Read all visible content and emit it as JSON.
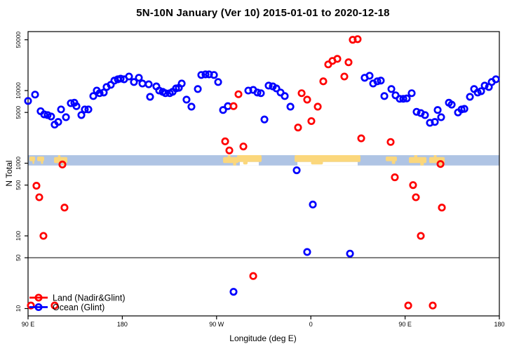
{
  "chart_data": {
    "type": "scatter",
    "title": "5N-10N January (Ver 10)   2015-01-01 to 2020-12-18",
    "xlabel": "Longitude (deg E)",
    "ylabel": "N Total",
    "x_axis": {
      "range_deg": [
        90,
        540
      ],
      "tick_degs": [
        90,
        180,
        270,
        360,
        450,
        540
      ],
      "tick_labels": [
        "90 E",
        "180",
        "90 W",
        "0",
        "90 E",
        "180"
      ],
      "note": "longitude axis wraps eastward from 90E through 180, 90W, 0, 90E to 180"
    },
    "y_axis": {
      "scale": "log",
      "ticks": [
        10,
        50,
        100,
        500,
        1000,
        5000,
        10000,
        50000
      ],
      "range": [
        8,
        75000
      ]
    },
    "threshold_line_value": 50,
    "map_band": {
      "value_range": [
        930,
        1290
      ],
      "ocean_color": "#AFC4E4",
      "land_color": "#FBD77C",
      "land_patches": [
        {
          "deg": [
            91.3,
            96.7
          ],
          "cov": "island"
        },
        {
          "deg": [
            98.7,
            105.4
          ],
          "cov": "island"
        },
        {
          "deg": [
            114.8,
            127.5
          ],
          "cov": "mid"
        },
        {
          "deg": [
            276.2,
            290.9
          ],
          "cov": "mid"
        },
        {
          "deg": [
            289.5,
            313.0
          ],
          "cov": "coast"
        },
        {
          "deg": [
            344.5,
            407.4
          ],
          "cov": "coast"
        },
        {
          "deg": [
            431.5,
            442.2
          ],
          "cov": "island"
        },
        {
          "deg": [
            453.6,
            470.4
          ],
          "cov": "mid"
        },
        {
          "deg": [
            473.0,
            487.8
          ],
          "cov": "mid"
        }
      ]
    },
    "legend": {
      "position": "bottom-left",
      "entries": [
        "Land (Nadir&Glint)",
        "Ocean (Glint)"
      ]
    },
    "series": [
      {
        "name": "Land (Nadir&Glint)",
        "color": "#FF0000",
        "points": [
          [
            92.7,
            11
          ],
          [
            98,
            490
          ],
          [
            100.7,
            340
          ],
          [
            104.7,
            100
          ],
          [
            115.4,
            11
          ],
          [
            122.8,
            960
          ],
          [
            124.8,
            245
          ],
          [
            278.2,
            2000
          ],
          [
            282.2,
            1500
          ],
          [
            286.2,
            6100
          ],
          [
            290.9,
            8900
          ],
          [
            295.6,
            1700
          ],
          [
            305,
            28
          ],
          [
            347.8,
            3100
          ],
          [
            351.2,
            9200
          ],
          [
            356.5,
            7500
          ],
          [
            360.5,
            3800
          ],
          [
            366.6,
            6000
          ],
          [
            371.9,
            13400
          ],
          [
            376.6,
            22900
          ],
          [
            380.6,
            25600
          ],
          [
            385.3,
            27300
          ],
          [
            392,
            15600
          ],
          [
            396,
            24500
          ],
          [
            400,
            50000
          ],
          [
            404.7,
            51000
          ],
          [
            408.1,
            2200
          ],
          [
            436.2,
            1960
          ],
          [
            440.2,
            640
          ],
          [
            453,
            11
          ],
          [
            457.6,
            500
          ],
          [
            460.3,
            340
          ],
          [
            465,
            100
          ],
          [
            476.4,
            11
          ],
          [
            483.8,
            975
          ],
          [
            485.1,
            245
          ]
        ]
      },
      {
        "name": "Ocean (Glint)",
        "color": "#0000FF",
        "points": [
          [
            90,
            7200
          ],
          [
            96.7,
            8800
          ],
          [
            102,
            5200
          ],
          [
            105.4,
            4700
          ],
          [
            108.7,
            4600
          ],
          [
            112,
            4400
          ],
          [
            115.4,
            3400
          ],
          [
            118.8,
            3700
          ],
          [
            121.5,
            5500
          ],
          [
            126.2,
            4300
          ],
          [
            130.8,
            6700
          ],
          [
            134.2,
            6800
          ],
          [
            136.2,
            6100
          ],
          [
            140.9,
            4600
          ],
          [
            144.2,
            5500
          ],
          [
            147.6,
            5500
          ],
          [
            152.3,
            8400
          ],
          [
            155.6,
            10000
          ],
          [
            158.3,
            9200
          ],
          [
            162.3,
            9400
          ],
          [
            165,
            11200
          ],
          [
            169,
            12000
          ],
          [
            172.4,
            13700
          ],
          [
            175.7,
            14300
          ],
          [
            178.4,
            14600
          ],
          [
            181.7,
            14300
          ],
          [
            186.4,
            15600
          ],
          [
            191.1,
            13100
          ],
          [
            195.8,
            15000
          ],
          [
            199.2,
            12500
          ],
          [
            205.2,
            12200
          ],
          [
            206.5,
            8200
          ],
          [
            212.5,
            11400
          ],
          [
            215.2,
            10000
          ],
          [
            218.6,
            9600
          ],
          [
            221.2,
            9200
          ],
          [
            225.3,
            9200
          ],
          [
            228,
            9600
          ],
          [
            231.3,
            10700
          ],
          [
            234,
            10900
          ],
          [
            236.7,
            12500
          ],
          [
            241.3,
            7500
          ],
          [
            246,
            6000
          ],
          [
            252.1,
            10500
          ],
          [
            255.4,
            16400
          ],
          [
            259.4,
            16700
          ],
          [
            262.8,
            16700
          ],
          [
            267.5,
            16400
          ],
          [
            271.5,
            13100
          ],
          [
            276.2,
            5400
          ],
          [
            280.8,
            6100
          ],
          [
            286.2,
            17
          ],
          [
            300.3,
            10000
          ],
          [
            305,
            10200
          ],
          [
            309,
            9400
          ],
          [
            312.3,
            9200
          ],
          [
            315.7,
            4000
          ],
          [
            319.7,
            11700
          ],
          [
            323.7,
            11400
          ],
          [
            327.1,
            10700
          ],
          [
            331.1,
            9400
          ],
          [
            335.1,
            8400
          ],
          [
            340.5,
            6000
          ],
          [
            346.5,
            800
          ],
          [
            356.5,
            60
          ],
          [
            361.9,
            270
          ],
          [
            397.4,
            57
          ],
          [
            411.4,
            15000
          ],
          [
            416.1,
            16000
          ],
          [
            419.5,
            12500
          ],
          [
            423.5,
            13400
          ],
          [
            426.8,
            13700
          ],
          [
            430.2,
            8400
          ],
          [
            436.9,
            10500
          ],
          [
            440.9,
            8600
          ],
          [
            444.9,
            7700
          ],
          [
            448.3,
            7700
          ],
          [
            451.6,
            7800
          ],
          [
            456.3,
            9200
          ],
          [
            461,
            5100
          ],
          [
            465,
            4900
          ],
          [
            469,
            4600
          ],
          [
            473.7,
            3600
          ],
          [
            478.4,
            3700
          ],
          [
            481.1,
            5400
          ],
          [
            484.4,
            4300
          ],
          [
            491.8,
            6800
          ],
          [
            494.5,
            6400
          ],
          [
            500.5,
            5000
          ],
          [
            503.9,
            5500
          ],
          [
            506.6,
            5600
          ],
          [
            511.9,
            8200
          ],
          [
            515.9,
            10500
          ],
          [
            519.3,
            9400
          ],
          [
            522.6,
            9800
          ],
          [
            526,
            11700
          ],
          [
            530,
            11200
          ],
          [
            532.7,
            13100
          ],
          [
            536.7,
            14300
          ]
        ]
      }
    ]
  }
}
